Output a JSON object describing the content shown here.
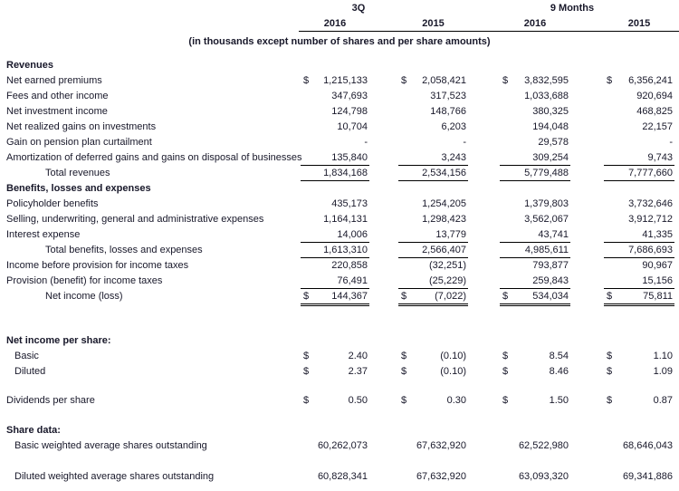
{
  "header": {
    "group1": "3Q",
    "group2": "9 Months",
    "years": [
      "2016",
      "2015",
      "2016",
      "2015"
    ],
    "subtitle": "(in thousands except number of shares and per share amounts)"
  },
  "rows": [
    {
      "kind": "section",
      "label": "Revenues"
    },
    {
      "kind": "data",
      "label": "Net earned premiums",
      "dollar": true,
      "values": [
        "1,215,133",
        "2,058,421",
        "3,832,595",
        "6,356,241"
      ]
    },
    {
      "kind": "data",
      "label": "Fees and other income",
      "values": [
        "347,693",
        "317,523",
        "1,033,688",
        "920,694"
      ]
    },
    {
      "kind": "data",
      "label": "Net investment income",
      "values": [
        "124,798",
        "148,766",
        "380,325",
        "468,825"
      ]
    },
    {
      "kind": "data",
      "label": "Net realized gains on investments",
      "values": [
        "10,704",
        "6,203",
        "194,048",
        "22,157"
      ]
    },
    {
      "kind": "data",
      "label": "Gain on pension plan curtailment",
      "values": [
        "-",
        "-",
        "29,578",
        "-"
      ]
    },
    {
      "kind": "data",
      "label": "Amortization of deferred gains and gains on disposal of businesses",
      "values": [
        "135,840",
        "3,243",
        "309,254",
        "9,743"
      ],
      "underline": "single"
    },
    {
      "kind": "data",
      "label": "Total revenues",
      "indent": 2,
      "values": [
        "1,834,168",
        "2,534,156",
        "5,779,488",
        "7,777,660"
      ],
      "underline": "single"
    },
    {
      "kind": "section",
      "label": "Benefits, losses and expenses"
    },
    {
      "kind": "data",
      "label": "Policyholder benefits",
      "values": [
        "435,173",
        "1,254,205",
        "1,379,803",
        "3,732,646"
      ]
    },
    {
      "kind": "data",
      "label": "Selling, underwriting, general and administrative expenses",
      "values": [
        "1,164,131",
        "1,298,423",
        "3,562,067",
        "3,912,712"
      ]
    },
    {
      "kind": "data",
      "label": "Interest expense",
      "values": [
        "14,006",
        "13,779",
        "43,741",
        "41,335"
      ],
      "underline": "single"
    },
    {
      "kind": "data",
      "label": "Total benefits, losses and expenses",
      "indent": 2,
      "values": [
        "1,613,310",
        "2,566,407",
        "4,985,611",
        "7,686,693"
      ],
      "underline": "single"
    },
    {
      "kind": "data",
      "label": "Income before provision for income taxes",
      "values": [
        "220,858",
        "(32,251)",
        "793,877",
        "90,967"
      ]
    },
    {
      "kind": "data",
      "label": "Provision (benefit) for income taxes",
      "values": [
        "76,491",
        "(25,229)",
        "259,843",
        "15,156"
      ],
      "underline": "single"
    },
    {
      "kind": "data",
      "label": "Net income (loss)",
      "indent": 2,
      "dollar": true,
      "values": [
        "144,367",
        "(7,022)",
        "534,034",
        "75,811"
      ],
      "underline": "double"
    },
    {
      "kind": "spacer",
      "h": 32
    },
    {
      "kind": "section",
      "label": "Net income per share:"
    },
    {
      "kind": "data",
      "label": "Basic",
      "indent": 1,
      "dollar": true,
      "values": [
        "2.40",
        "(0.10)",
        "8.54",
        "1.10"
      ]
    },
    {
      "kind": "data",
      "label": "Diluted",
      "indent": 1,
      "dollar": true,
      "values": [
        "2.37",
        "(0.10)",
        "8.46",
        "1.09"
      ]
    },
    {
      "kind": "spacer",
      "h": 15
    },
    {
      "kind": "data",
      "label": "Dividends per share",
      "dollar": true,
      "values": [
        "0.50",
        "0.30",
        "1.50",
        "0.87"
      ]
    },
    {
      "kind": "spacer",
      "h": 16
    },
    {
      "kind": "section",
      "label": "Share data:"
    },
    {
      "kind": "data",
      "label": "Basic weighted average shares outstanding",
      "indent": 1,
      "values": [
        "60,262,073",
        "67,632,920",
        "62,522,980",
        "68,646,043"
      ]
    },
    {
      "kind": "spacer",
      "h": 17
    },
    {
      "kind": "data",
      "label": "Diluted weighted average shares outstanding",
      "indent": 1,
      "values": [
        "60,828,341",
        "67,632,920",
        "63,093,320",
        "69,341,886"
      ]
    }
  ],
  "colors": {
    "text": "#18182a",
    "rule": "#000000",
    "background": "#ffffff"
  }
}
